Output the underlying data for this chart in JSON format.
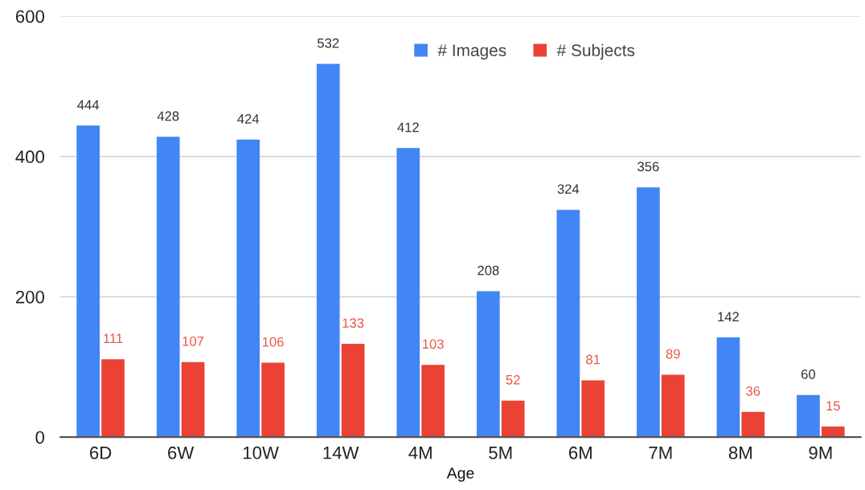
{
  "chart_data": {
    "type": "bar",
    "xlabel": "Age",
    "categories": [
      "6D",
      "6W",
      "10W",
      "14W",
      "4M",
      "5M",
      "6M",
      "7M",
      "8M",
      "9M"
    ],
    "series": [
      {
        "name": "# Images",
        "color": "#4285f4",
        "values": [
          444,
          428,
          424,
          532,
          412,
          208,
          324,
          356,
          142,
          60
        ]
      },
      {
        "name": "# Subjects",
        "color": "#ea4335",
        "values": [
          111,
          107,
          106,
          133,
          103,
          52,
          81,
          89,
          36,
          15
        ]
      }
    ],
    "ylim": [
      0,
      600
    ],
    "yticks": [
      0,
      200,
      400,
      600
    ],
    "grid": "y",
    "legend": "top",
    "data_labels": true
  }
}
